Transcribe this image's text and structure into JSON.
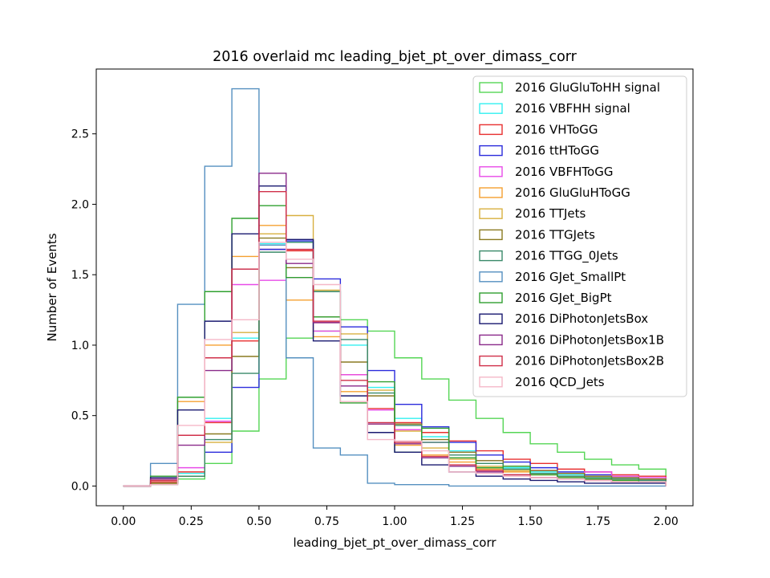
{
  "chart_data": {
    "type": "step-histogram",
    "title": "2016 overlaid mc leading_bjet_pt_over_dimass_corr",
    "xlabel": "leading_bjet_pt_over_dimass_corr",
    "ylabel": "Number of Events",
    "xlim": [
      -0.1,
      2.1
    ],
    "ylim": [
      -0.14,
      2.96
    ],
    "x_ticks": [
      "0.00",
      "0.25",
      "0.50",
      "0.75",
      "1.00",
      "1.25",
      "1.50",
      "1.75",
      "2.00"
    ],
    "x_tick_values": [
      0,
      0.25,
      0.5,
      0.75,
      1.0,
      1.25,
      1.5,
      1.75,
      2.0
    ],
    "y_ticks": [
      "0.0",
      "0.5",
      "1.0",
      "1.5",
      "2.0",
      "2.5"
    ],
    "y_tick_values": [
      0,
      0.5,
      1.0,
      1.5,
      2.0,
      2.5
    ],
    "bin_edges": [
      0,
      0.1,
      0.2,
      0.3,
      0.4,
      0.5,
      0.6,
      0.7,
      0.8,
      0.9,
      1.0,
      1.1,
      1.2,
      1.3,
      1.4,
      1.5,
      1.6,
      1.7,
      1.8,
      1.9,
      2.0
    ],
    "legend_position": "upper right",
    "grid": false,
    "series": [
      {
        "name": "2016 GluGluToHH signal",
        "color": "#55d655",
        "values": [
          0,
          0.02,
          0.05,
          0.16,
          0.39,
          0.76,
          1.05,
          1.1,
          1.18,
          1.1,
          0.91,
          0.76,
          0.61,
          0.48,
          0.38,
          0.3,
          0.24,
          0.19,
          0.15,
          0.12
        ]
      },
      {
        "name": "2016 VBFHH signal",
        "color": "#33f0f0",
        "values": [
          0,
          0.03,
          0.09,
          0.48,
          1.05,
          1.72,
          1.73,
          1.38,
          1.0,
          0.7,
          0.48,
          0.35,
          0.25,
          0.18,
          0.13,
          0.1,
          0.08,
          0.06,
          0.05,
          0.04
        ]
      },
      {
        "name": "2016 VHToGG",
        "color": "#e83030",
        "values": [
          0,
          0.03,
          0.1,
          0.45,
          1.03,
          1.68,
          1.67,
          1.16,
          0.79,
          0.55,
          0.45,
          0.38,
          0.32,
          0.25,
          0.19,
          0.16,
          0.12,
          0.1,
          0.08,
          0.07
        ]
      },
      {
        "name": "2016 ttHToGG",
        "color": "#2b2bdc",
        "values": [
          0,
          0.02,
          0.07,
          0.24,
          0.7,
          1.68,
          1.74,
          1.47,
          1.13,
          0.82,
          0.58,
          0.42,
          0.31,
          0.22,
          0.17,
          0.13,
          0.1,
          0.08,
          0.06,
          0.05
        ]
      },
      {
        "name": "2016 VBFHToGG",
        "color": "#e84be8",
        "values": [
          0,
          0.02,
          0.13,
          0.46,
          1.43,
          1.46,
          1.48,
          1.1,
          0.79,
          0.54,
          0.4,
          0.31,
          0.24,
          0.18,
          0.14,
          0.11,
          0.09,
          0.1,
          0.07,
          0.06
        ]
      },
      {
        "name": "2016 GluGluHToGG",
        "color": "#f5a030",
        "values": [
          0,
          0.02,
          0.6,
          1.0,
          1.63,
          1.85,
          1.32,
          1.06,
          0.67,
          0.44,
          0.29,
          0.22,
          0.17,
          0.12,
          0.1,
          0.08,
          0.06,
          0.05,
          0.04,
          0.03
        ]
      },
      {
        "name": "2016 TTJets",
        "color": "#d8b040",
        "values": [
          0,
          0.02,
          0.07,
          0.31,
          1.09,
          1.79,
          1.92,
          1.39,
          1.08,
          0.68,
          0.39,
          0.27,
          0.19,
          0.14,
          0.11,
          0.08,
          0.07,
          0.06,
          0.05,
          0.04
        ]
      },
      {
        "name": "2016 TTGJets",
        "color": "#8a7a20",
        "values": [
          0,
          0.02,
          0.07,
          0.37,
          0.92,
          1.76,
          1.55,
          1.2,
          0.88,
          0.64,
          0.44,
          0.33,
          0.24,
          0.18,
          0.14,
          0.11,
          0.09,
          0.07,
          0.06,
          0.05
        ]
      },
      {
        "name": "2016 TTGG_0Jets",
        "color": "#3a8a6a",
        "values": [
          0,
          0.01,
          0.07,
          0.33,
          0.8,
          1.66,
          1.73,
          1.38,
          1.04,
          0.66,
          0.43,
          0.31,
          0.22,
          0.16,
          0.12,
          0.09,
          0.07,
          0.06,
          0.05,
          0.04
        ]
      },
      {
        "name": "2016 GJet_SmallPt",
        "color": "#5590c0",
        "values": [
          0,
          0.16,
          1.29,
          2.27,
          2.82,
          1.71,
          0.91,
          0.27,
          0.22,
          0.02,
          0.01,
          0.01,
          0,
          0,
          0,
          0,
          0,
          0,
          0,
          0
        ]
      },
      {
        "name": "2016 GJet_BigPt",
        "color": "#30a030",
        "values": [
          0,
          0.07,
          0.63,
          1.38,
          1.9,
          1.99,
          1.48,
          1.2,
          0.59,
          0.74,
          0.24,
          0.41,
          0.2,
          0.13,
          0.14,
          0.08,
          0.06,
          0.05,
          0.04,
          0.03
        ]
      },
      {
        "name": "2016 DiPhotonJetsBox",
        "color": "#1a1a70",
        "values": [
          0,
          0.06,
          0.54,
          1.17,
          1.79,
          2.13,
          1.75,
          1.03,
          0.64,
          0.38,
          0.24,
          0.15,
          0.1,
          0.07,
          0.05,
          0.04,
          0.03,
          0.02,
          0.02,
          0.02
        ]
      },
      {
        "name": "2016 DiPhotonJetsBox1B",
        "color": "#8a2a8a",
        "values": [
          0,
          0.05,
          0.29,
          0.82,
          1.54,
          2.22,
          1.58,
          1.16,
          0.71,
          0.44,
          0.3,
          0.2,
          0.14,
          0.1,
          0.08,
          0.06,
          0.05,
          0.04,
          0.03,
          0.03
        ]
      },
      {
        "name": "2016 DiPhotonJetsBox2B",
        "color": "#d0304a",
        "values": [
          0,
          0.04,
          0.36,
          0.91,
          1.54,
          2.09,
          1.68,
          1.17,
          0.75,
          0.45,
          0.31,
          0.21,
          0.15,
          0.11,
          0.08,
          0.06,
          0.05,
          0.04,
          0.03,
          0.03
        ]
      },
      {
        "name": "2016 QCD_Jets",
        "color": "#f5b8c8",
        "values": [
          0,
          0.01,
          0.43,
          1.04,
          1.18,
          1.73,
          1.61,
          1.43,
          0.6,
          0.33,
          0.32,
          0.25,
          0.1,
          0.09,
          0.07,
          0.06,
          0.05,
          0.04,
          0.03,
          0.03
        ]
      }
    ]
  }
}
